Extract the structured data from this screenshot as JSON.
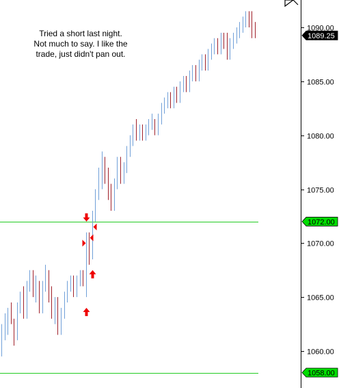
{
  "annotation": {
    "lines": [
      "Tried a short last night.",
      "Not much to say. I like the",
      "trade, just didn't pan out."
    ]
  },
  "chart_data": {
    "type": "ohlc",
    "ylim": [
      1057.5,
      1092.0
    ],
    "ticks": [
      {
        "value": 1060,
        "label": "1060.00"
      },
      {
        "value": 1065,
        "label": "1065.00"
      },
      {
        "value": 1070,
        "label": "1070.00"
      },
      {
        "value": 1075,
        "label": "1075.00"
      },
      {
        "value": 1080,
        "label": "1080.00"
      },
      {
        "value": 1085,
        "label": "1085.00"
      },
      {
        "value": 1090,
        "label": "1090.00"
      }
    ],
    "price_tags": [
      {
        "value": 1089.25,
        "label": "1089.25",
        "bg": "#000000",
        "fg": "#ffffff"
      },
      {
        "value": 1072.0,
        "label": "1072.00",
        "bg": "#00dd00",
        "fg": "#000000"
      },
      {
        "value": 1058.0,
        "label": "1058.00",
        "bg": "#00dd00",
        "fg": "#000000"
      }
    ],
    "horizontal_lines": [
      {
        "value": 1072.0,
        "color": "#22cc22"
      },
      {
        "value": 1058.0,
        "color": "#22cc22"
      }
    ],
    "colors": {
      "up": "#6f9fd8",
      "down": "#a0202a",
      "marker": "#ee0000",
      "axis": "#000000"
    },
    "bars": [
      [
        1060.5,
        1062.5,
        1059.5,
        1062.0
      ],
      [
        1062.0,
        1063.5,
        1061.0,
        1062.5
      ],
      [
        1062.5,
        1064.0,
        1061.5,
        1063.5
      ],
      [
        1063.5,
        1064.5,
        1062.5,
        1062.0
      ],
      [
        1062.0,
        1063.0,
        1060.5,
        1061.5
      ],
      [
        1061.5,
        1064.5,
        1061.0,
        1064.0
      ],
      [
        1064.0,
        1065.5,
        1063.5,
        1065.0
      ],
      [
        1065.0,
        1066.0,
        1063.0,
        1063.5
      ],
      [
        1063.5,
        1066.5,
        1063.0,
        1066.0
      ],
      [
        1066.0,
        1067.5,
        1065.5,
        1067.0
      ],
      [
        1067.0,
        1067.5,
        1065.0,
        1065.5
      ],
      [
        1065.5,
        1067.0,
        1064.5,
        1066.0
      ],
      [
        1066.0,
        1066.5,
        1063.5,
        1064.0
      ],
      [
        1064.0,
        1066.5,
        1063.5,
        1066.0
      ],
      [
        1066.0,
        1068.0,
        1065.5,
        1067.5
      ],
      [
        1067.5,
        1067.5,
        1064.5,
        1065.0
      ],
      [
        1065.0,
        1066.0,
        1063.0,
        1063.5
      ],
      [
        1063.5,
        1065.0,
        1062.5,
        1064.5
      ],
      [
        1064.5,
        1065.0,
        1061.5,
        1062.0
      ],
      [
        1062.0,
        1064.0,
        1061.5,
        1063.5
      ],
      [
        1063.5,
        1065.5,
        1063.0,
        1065.0
      ],
      [
        1065.0,
        1066.5,
        1064.5,
        1066.0
      ],
      [
        1066.0,
        1067.0,
        1065.5,
        1066.5
      ],
      [
        1066.5,
        1067.0,
        1065.0,
        1065.5
      ],
      [
        1065.5,
        1067.0,
        1065.0,
        1066.5
      ],
      [
        1066.5,
        1067.5,
        1066.0,
        1067.0
      ],
      [
        1067.0,
        1067.5,
        1066.0,
        1066.5
      ],
      [
        1066.5,
        1071.0,
        1065.0,
        1070.5
      ],
      [
        1070.5,
        1071.0,
        1068.0,
        1069.0
      ],
      [
        1069.0,
        1073.0,
        1068.5,
        1072.5
      ],
      [
        1072.5,
        1075.0,
        1072.0,
        1074.5
      ],
      [
        1074.5,
        1077.0,
        1074.0,
        1076.5
      ],
      [
        1076.5,
        1078.5,
        1075.0,
        1078.0
      ],
      [
        1078.0,
        1078.0,
        1075.5,
        1076.0
      ],
      [
        1076.0,
        1077.0,
        1074.0,
        1074.5
      ],
      [
        1074.5,
        1075.5,
        1073.0,
        1073.5
      ],
      [
        1073.5,
        1076.0,
        1073.0,
        1075.5
      ],
      [
        1075.5,
        1078.0,
        1075.0,
        1077.5
      ],
      [
        1077.5,
        1078.0,
        1075.5,
        1076.0
      ],
      [
        1076.0,
        1077.5,
        1075.5,
        1077.0
      ],
      [
        1077.0,
        1079.0,
        1076.5,
        1078.5
      ],
      [
        1078.5,
        1080.0,
        1078.0,
        1079.5
      ],
      [
        1079.5,
        1081.0,
        1079.0,
        1080.5
      ],
      [
        1080.5,
        1081.5,
        1079.5,
        1080.0
      ],
      [
        1080.0,
        1081.0,
        1079.5,
        1080.5
      ],
      [
        1080.5,
        1081.0,
        1079.5,
        1080.0
      ],
      [
        1080.0,
        1081.0,
        1079.5,
        1080.5
      ],
      [
        1080.5,
        1081.5,
        1080.0,
        1081.0
      ],
      [
        1081.0,
        1082.0,
        1080.5,
        1081.5
      ],
      [
        1081.5,
        1081.5,
        1080.0,
        1080.5
      ],
      [
        1080.5,
        1082.0,
        1080.0,
        1081.5
      ],
      [
        1081.5,
        1083.0,
        1081.0,
        1082.5
      ],
      [
        1082.5,
        1083.5,
        1082.0,
        1083.0
      ],
      [
        1083.0,
        1084.0,
        1082.5,
        1083.5
      ],
      [
        1083.5,
        1084.0,
        1082.5,
        1083.0
      ],
      [
        1083.0,
        1084.5,
        1082.5,
        1084.0
      ],
      [
        1084.0,
        1084.5,
        1083.0,
        1083.5
      ],
      [
        1083.5,
        1085.0,
        1083.0,
        1084.5
      ],
      [
        1084.5,
        1085.5,
        1084.0,
        1085.0
      ],
      [
        1085.0,
        1085.5,
        1084.0,
        1084.5
      ],
      [
        1084.5,
        1086.0,
        1084.0,
        1085.5
      ],
      [
        1085.5,
        1086.5,
        1085.0,
        1086.0
      ],
      [
        1086.0,
        1086.5,
        1085.0,
        1085.5
      ],
      [
        1085.5,
        1087.0,
        1085.0,
        1086.5
      ],
      [
        1086.5,
        1087.5,
        1086.0,
        1087.0
      ],
      [
        1087.0,
        1087.5,
        1086.0,
        1086.5
      ],
      [
        1086.5,
        1088.0,
        1086.0,
        1087.5
      ],
      [
        1087.5,
        1088.5,
        1087.0,
        1088.0
      ],
      [
        1088.0,
        1089.0,
        1087.5,
        1088.5
      ],
      [
        1088.5,
        1089.0,
        1087.5,
        1088.0
      ],
      [
        1088.0,
        1089.5,
        1087.5,
        1089.0
      ],
      [
        1089.0,
        1089.5,
        1088.0,
        1088.5
      ],
      [
        1088.5,
        1089.5,
        1087.0,
        1087.5
      ],
      [
        1087.5,
        1089.0,
        1087.0,
        1088.5
      ],
      [
        1088.5,
        1089.5,
        1088.0,
        1089.0
      ],
      [
        1089.0,
        1090.0,
        1088.5,
        1089.5
      ],
      [
        1089.5,
        1090.5,
        1089.0,
        1090.0
      ],
      [
        1090.0,
        1091.0,
        1089.5,
        1090.5
      ],
      [
        1090.5,
        1091.5,
        1090.0,
        1091.0
      ],
      [
        1091.0,
        1091.5,
        1090.0,
        1090.5
      ],
      [
        1090.5,
        1091.5,
        1089.0,
        1089.5
      ],
      [
        1089.5,
        1090.5,
        1089.0,
        1089.25
      ]
    ],
    "markers": [
      {
        "bar": 27,
        "value": 1072.0,
        "symbol": "arrow-down"
      },
      {
        "bar": 27,
        "value": 1070.0,
        "symbol": "triangle-right"
      },
      {
        "bar": 28,
        "value": 1070.5,
        "symbol": "triangle-left"
      },
      {
        "bar": 29,
        "value": 1071.5,
        "symbol": "triangle-left"
      },
      {
        "bar": 29,
        "value": 1067.5,
        "symbol": "arrow-up"
      },
      {
        "bar": 27,
        "value": 1064.0,
        "symbol": "arrow-up"
      }
    ]
  }
}
